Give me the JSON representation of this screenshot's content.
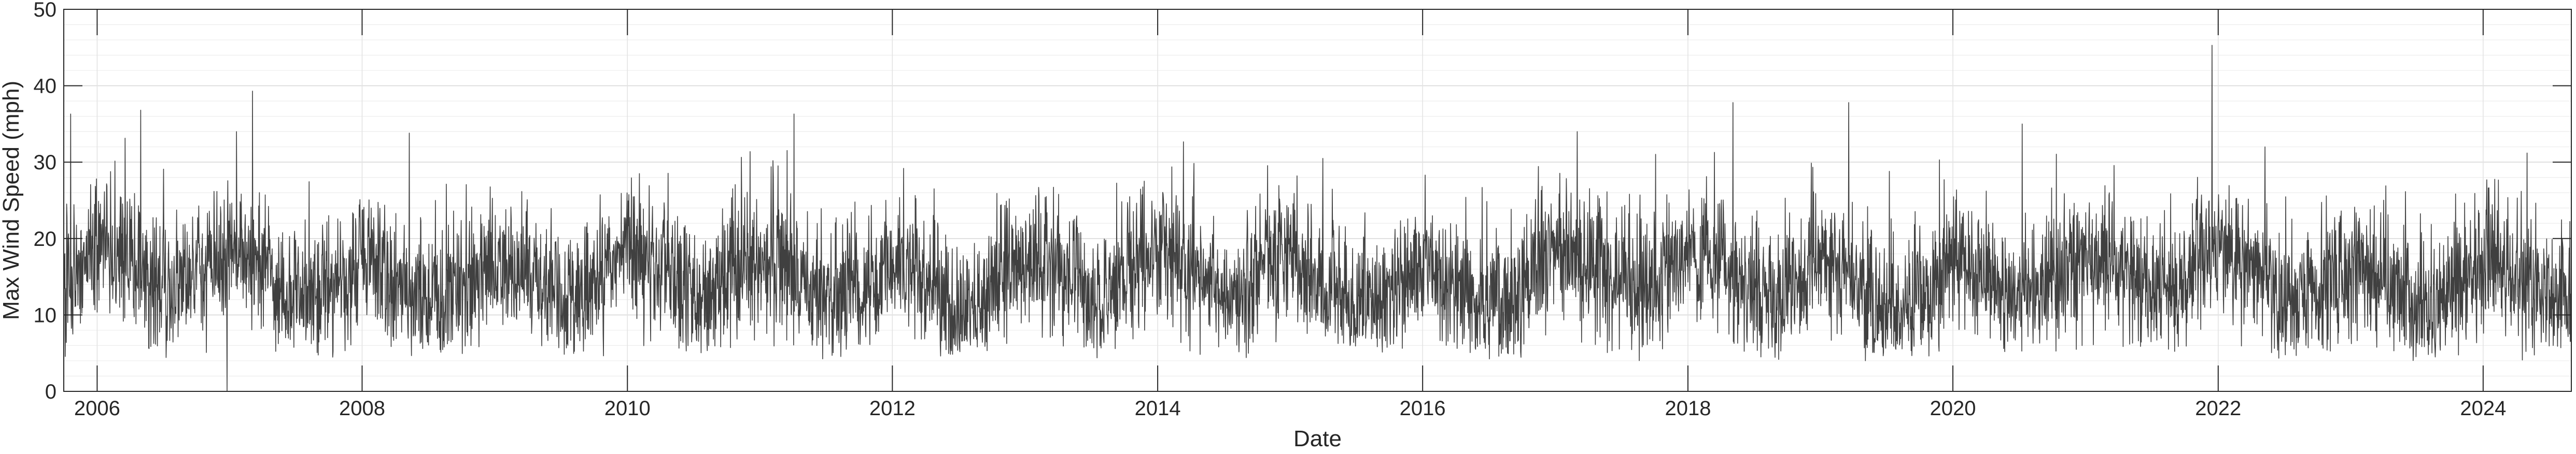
{
  "chart_data": {
    "type": "line",
    "xlabel": "Date",
    "ylabel": "Max Wind Speed (mph)",
    "xlim": [
      "2005-10-01",
      "2024-08-31"
    ],
    "ylim": [
      0,
      50
    ],
    "x_tick_labels": [
      "2006",
      "2008",
      "2010",
      "2012",
      "2014",
      "2016",
      "2018",
      "2020",
      "2022",
      "2024"
    ],
    "y_tick_labels": [
      "0",
      "10",
      "20",
      "30",
      "40",
      "50"
    ],
    "grid": true,
    "minor_grid": true,
    "series": [
      {
        "color": "#404040",
        "sampling": "daily",
        "x_start": "2005-10-01",
        "x_end": "2024-08-31",
        "y_mean": 14.5,
        "y_typical_range": [
          6,
          28
        ],
        "notable_points": [
          {
            "x": "2005-10-20",
            "y": 36.3
          },
          {
            "x": "2006-05-01",
            "y": 36.8
          },
          {
            "x": "2006-12-25",
            "y": 0
          },
          {
            "x": "2007-03-05",
            "y": 39.3
          },
          {
            "x": "2008-05-10",
            "y": 33.8
          },
          {
            "x": "2011-04-05",
            "y": 36.3
          },
          {
            "x": "2018-05-05",
            "y": 37.8
          },
          {
            "x": "2019-03-20",
            "y": 37.8
          },
          {
            "x": "2020-07-10",
            "y": 35.0
          },
          {
            "x": "2021-12-15",
            "y": 45.3
          },
          {
            "x": "2022-05-10",
            "y": 32.0
          },
          {
            "x": "2024-05-01",
            "y": 31.2
          }
        ]
      }
    ]
  }
}
